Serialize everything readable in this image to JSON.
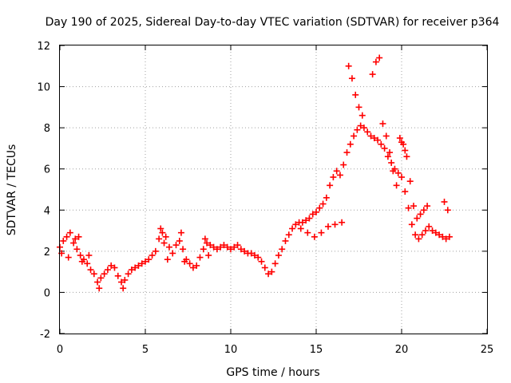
{
  "chart_data": {
    "type": "scatter",
    "title": "Day 190 of 2025, Sidereal Day-to-day VTEC variation (SDTVAR) for receiver p364",
    "xlabel": "GPS time / hours",
    "ylabel": "SDTVAR / TECUs",
    "xlim": [
      0,
      25
    ],
    "ylim": [
      -2,
      12
    ],
    "xticks": [
      "0",
      "5",
      "10",
      "15",
      "20",
      "25"
    ],
    "yticks": [
      "-2",
      "0",
      "2",
      "4",
      "6",
      "8",
      "10",
      "12"
    ],
    "grid": true,
    "marker": "+",
    "color": "#ff0000",
    "series": [
      {
        "name": "SDTVAR",
        "x": [
          0.0,
          0.2,
          0.4,
          0.6,
          0.8,
          1.0,
          1.2,
          1.4,
          1.6,
          1.8,
          2.0,
          2.2,
          2.4,
          2.6,
          2.8,
          3.0,
          3.2,
          3.4,
          3.6,
          3.8,
          4.0,
          4.2,
          4.4,
          4.6,
          4.8,
          5.0,
          5.2,
          5.4,
          5.6,
          5.8,
          6.0,
          6.2,
          6.4,
          6.6,
          6.8,
          7.0,
          7.2,
          7.4,
          7.6,
          7.8,
          8.0,
          8.2,
          8.4,
          8.6,
          8.8,
          9.0,
          9.2,
          9.4,
          9.6,
          9.8,
          10.0,
          10.2,
          10.4,
          10.6,
          10.8,
          11.0,
          11.2,
          11.4,
          11.6,
          11.8,
          12.0,
          12.2,
          12.4,
          12.6,
          12.8,
          13.0,
          13.2,
          13.4,
          13.6,
          13.8,
          14.0,
          14.2,
          14.4,
          14.6,
          14.8,
          15.0,
          15.2,
          15.4,
          15.6,
          15.8,
          16.0,
          16.2,
          16.4,
          16.6,
          16.8,
          17.0,
          17.2,
          17.4,
          17.6,
          17.8,
          18.0,
          18.2,
          18.4,
          18.6,
          18.8,
          19.0,
          19.2,
          19.4,
          19.6,
          19.8,
          20.0,
          20.2,
          20.4,
          20.6,
          20.8,
          21.0,
          21.2,
          21.4,
          21.6,
          21.8,
          22.0,
          22.2,
          22.4,
          22.6,
          22.8,
          0.1,
          0.5,
          0.9,
          1.3,
          1.7,
          5.9,
          6.1,
          6.3,
          7.1,
          7.3,
          8.5,
          8.7,
          16.9,
          17.1,
          17.3,
          17.5,
          17.7,
          18.3,
          18.5,
          18.7,
          18.9,
          19.1,
          19.3,
          19.5,
          19.7,
          20.1,
          20.3,
          20.5,
          20.7,
          20.9,
          21.1,
          21.3,
          21.5,
          22.5,
          22.7,
          15.3,
          15.7,
          16.1,
          16.5,
          14.1,
          14.5,
          14.9,
          2.3,
          3.7,
          1.1,
          19.9,
          20.0,
          20.2
        ],
        "y": [
          2.2,
          2.5,
          2.7,
          2.9,
          2.4,
          2.1,
          1.8,
          1.6,
          1.4,
          1.1,
          0.9,
          0.5,
          0.7,
          0.9,
          1.1,
          1.3,
          1.2,
          0.8,
          0.5,
          0.6,
          0.9,
          1.1,
          1.2,
          1.3,
          1.4,
          1.5,
          1.6,
          1.8,
          2.0,
          2.6,
          2.9,
          2.7,
          2.2,
          1.9,
          2.3,
          2.5,
          2.1,
          1.6,
          1.4,
          1.2,
          1.3,
          1.7,
          2.1,
          2.4,
          2.3,
          2.2,
          2.1,
          2.2,
          2.3,
          2.2,
          2.1,
          2.2,
          2.3,
          2.1,
          2.0,
          1.9,
          1.9,
          1.8,
          1.7,
          1.5,
          1.2,
          0.9,
          1.0,
          1.4,
          1.8,
          2.1,
          2.5,
          2.8,
          3.1,
          3.3,
          3.4,
          3.4,
          3.5,
          3.6,
          3.8,
          3.9,
          4.1,
          4.3,
          4.6,
          5.2,
          5.6,
          5.9,
          5.7,
          6.2,
          6.8,
          7.2,
          7.6,
          7.9,
          8.1,
          8.0,
          7.8,
          7.6,
          7.5,
          7.4,
          7.2,
          7.0,
          6.6,
          6.3,
          6.0,
          5.8,
          5.6,
          4.9,
          4.1,
          3.3,
          2.8,
          2.6,
          2.8,
          3.0,
          3.2,
          3.0,
          2.9,
          2.8,
          2.7,
          2.6,
          2.7,
          1.9,
          1.7,
          2.6,
          1.5,
          1.8,
          3.1,
          2.4,
          1.6,
          2.9,
          1.5,
          2.6,
          1.8,
          11.0,
          10.4,
          9.6,
          9.0,
          8.6,
          10.6,
          11.2,
          11.4,
          8.2,
          7.6,
          6.8,
          5.9,
          5.2,
          7.2,
          6.6,
          5.4,
          4.2,
          3.6,
          3.8,
          4.0,
          4.2,
          4.4,
          4.0,
          2.9,
          3.2,
          3.3,
          3.4,
          3.1,
          2.9,
          2.7,
          0.2,
          0.2,
          2.7,
          7.5,
          7.3,
          6.9
        ]
      }
    ]
  }
}
